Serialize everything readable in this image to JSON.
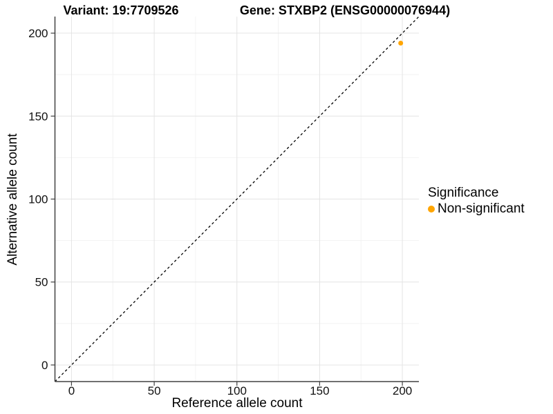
{
  "titles": {
    "variant": "Variant: 19:7709526",
    "gene": "Gene: STXBP2 (ENSG00000076944)"
  },
  "axes": {
    "x": {
      "label": "Reference allele count",
      "ticks": [
        0,
        50,
        100,
        150,
        200
      ],
      "minor_ticks": [
        25,
        75,
        125,
        175
      ]
    },
    "y": {
      "label": "Alternative allele count",
      "ticks": [
        0,
        50,
        100,
        150,
        200
      ],
      "minor_ticks": [
        25,
        75,
        125,
        175
      ]
    }
  },
  "legend": {
    "title": "Significance",
    "entries": [
      {
        "label": "Non-significant",
        "color": "#FFA500"
      }
    ]
  },
  "chart_data": {
    "type": "scatter",
    "title": "Variant: 19:7709526   Gene: STXBP2 (ENSG00000076944)",
    "xlabel": "Reference allele count",
    "ylabel": "Alternative allele count",
    "xlim": [
      -10,
      210
    ],
    "ylim": [
      -10,
      210
    ],
    "grid": true,
    "legend_position": "right",
    "series": [
      {
        "name": "Non-significant",
        "color": "#FFA500",
        "points": [
          {
            "x": 199,
            "y": 194
          }
        ]
      }
    ],
    "reference_line": {
      "type": "identity",
      "equation": "y = x",
      "style": "dashed",
      "color": "#000000"
    }
  },
  "colors": {
    "point_orange": "#FFA500",
    "axis_line": "#404040",
    "major_grid": "#e4e4e4",
    "minor_grid": "#f2f2f2",
    "tick_text": "#111111",
    "background": "#ffffff"
  }
}
